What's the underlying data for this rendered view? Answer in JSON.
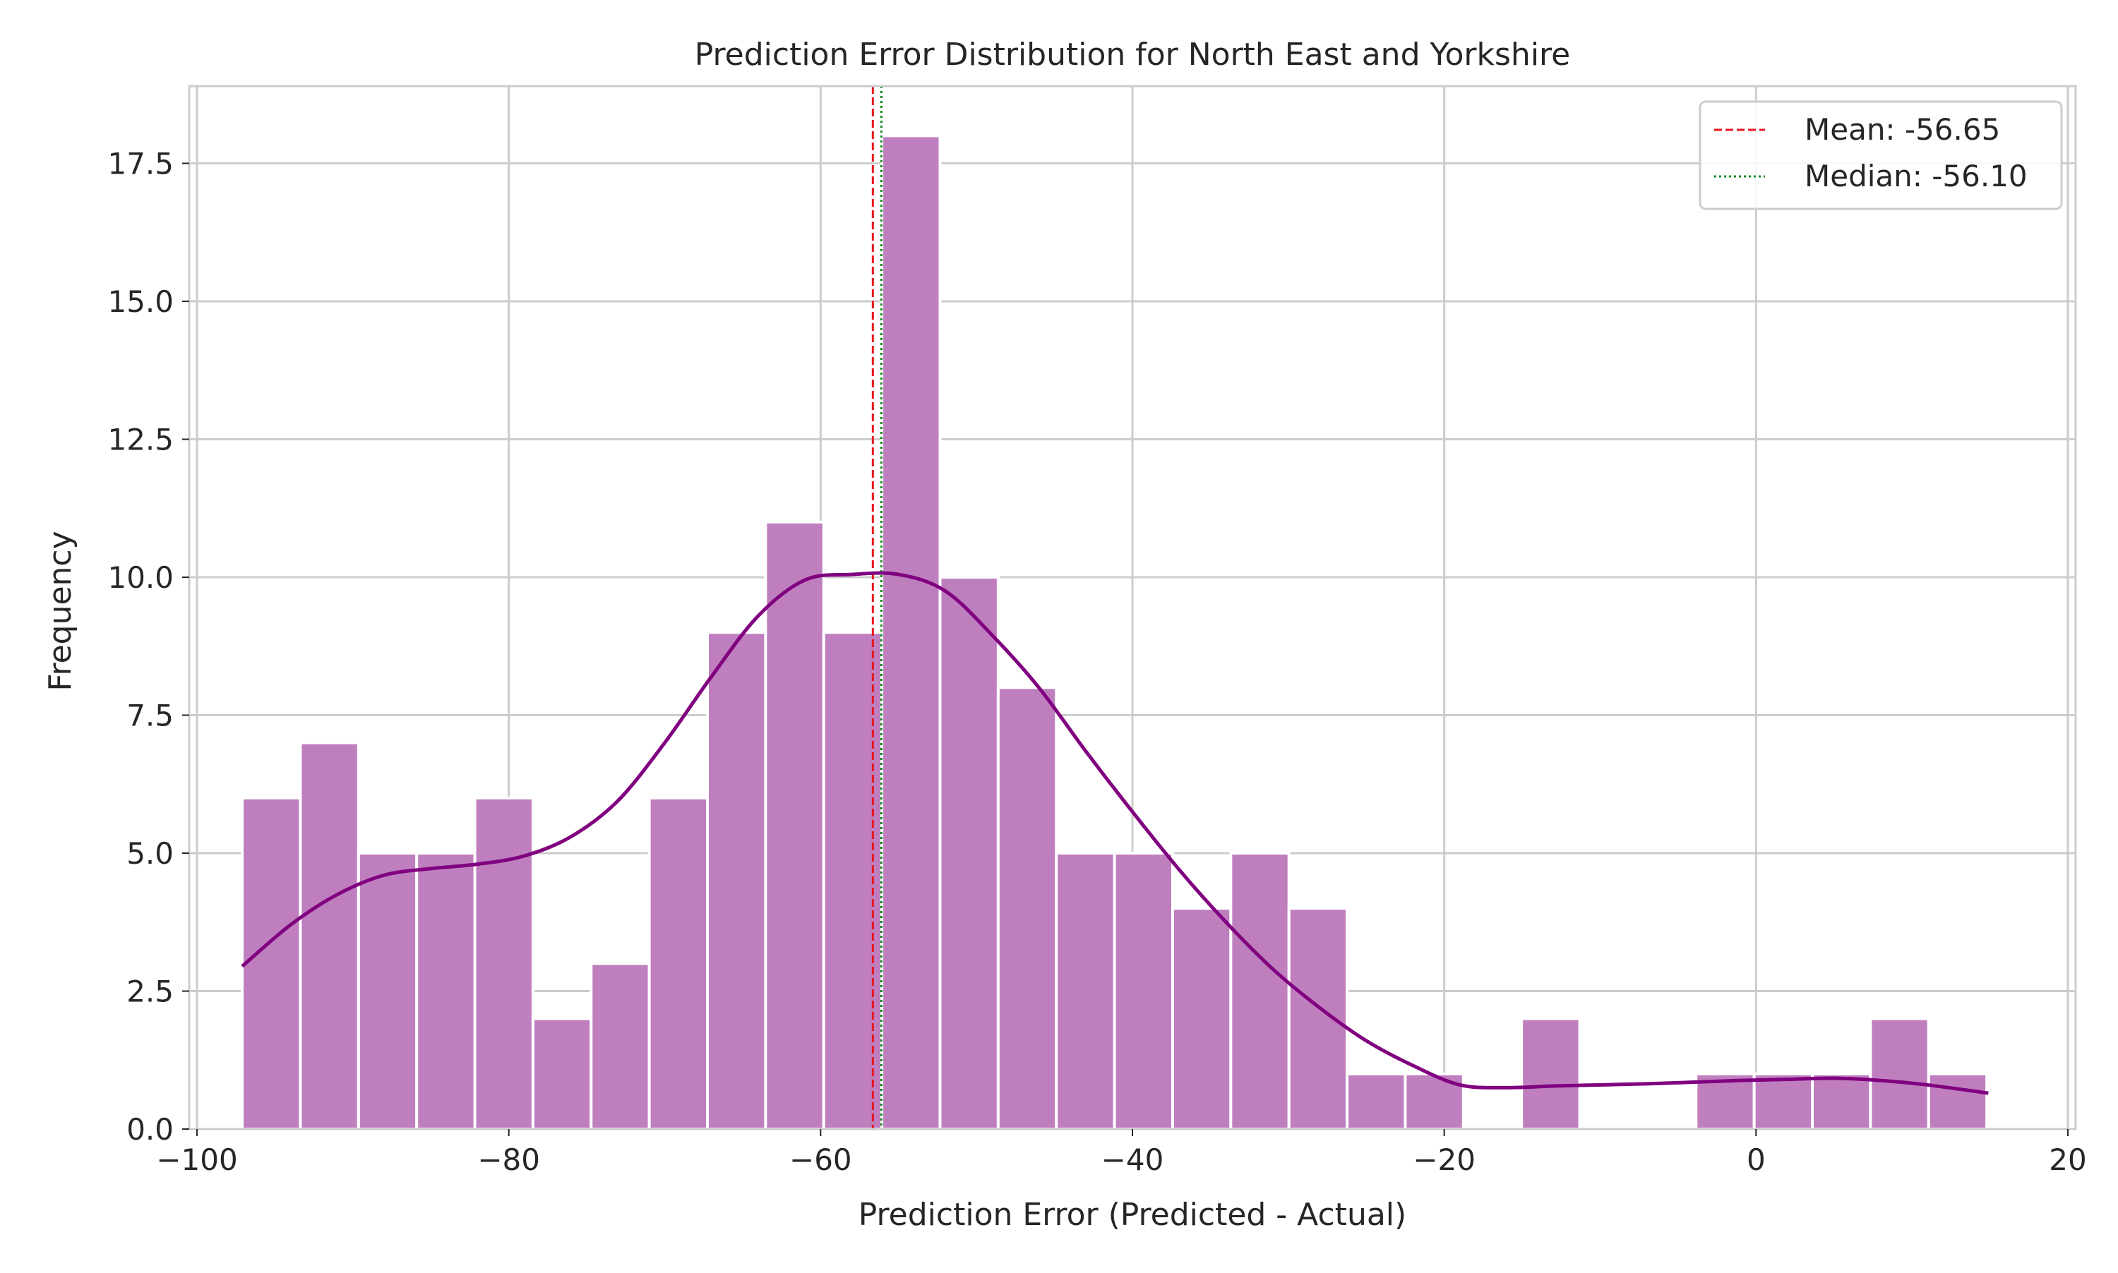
{
  "chart_data": {
    "type": "bar",
    "title": "Prediction Error Distribution for North East and Yorkshire",
    "xlabel": "Prediction Error (Predicted - Actual)",
    "ylabel": "Frequency",
    "xlim": [
      -100.5,
      20.5
    ],
    "ylim": [
      0,
      18.9
    ],
    "xticks": [
      -100,
      -80,
      -60,
      -40,
      -20,
      0,
      20
    ],
    "xtick_labels": [
      "−100",
      "−80",
      "−60",
      "−40",
      "−20",
      "0",
      "20"
    ],
    "yticks": [
      0,
      2.5,
      5,
      7.5,
      10,
      12.5,
      15,
      17.5
    ],
    "ytick_labels": [
      "0.0",
      "2.5",
      "5.0",
      "7.5",
      "10.0",
      "12.5",
      "15.0",
      "17.5"
    ],
    "grid": true,
    "legend_position": "top-right",
    "bin_start": -97.1,
    "bin_width": 3.73,
    "counts": [
      6,
      7,
      5,
      5,
      6,
      2,
      3,
      6,
      9,
      11,
      9,
      18,
      10,
      8,
      5,
      5,
      4,
      5,
      4,
      1,
      1,
      0,
      2,
      0,
      0,
      1,
      1,
      1,
      2,
      1
    ],
    "bar_color": "#bf7fbf",
    "kde": {
      "color": "#800080",
      "x": [
        -97.1,
        -94,
        -91,
        -88,
        -85,
        -82,
        -79,
        -76,
        -73,
        -70,
        -67,
        -64,
        -61,
        -58,
        -55,
        -52,
        -49,
        -46,
        -43,
        -40,
        -37,
        -34,
        -31,
        -28,
        -25,
        -22,
        -19,
        -16,
        -13,
        -10,
        -7,
        -4,
        -1,
        2,
        5,
        8,
        11,
        14.9
      ],
      "y": [
        2.95,
        3.7,
        4.25,
        4.6,
        4.72,
        4.8,
        4.95,
        5.3,
        5.95,
        7.0,
        8.2,
        9.3,
        9.95,
        10.05,
        10.05,
        9.75,
        8.95,
        8.0,
        6.85,
        5.75,
        4.7,
        3.75,
        2.9,
        2.2,
        1.6,
        1.15,
        0.8,
        0.75,
        0.78,
        0.8,
        0.82,
        0.85,
        0.88,
        0.9,
        0.92,
        0.88,
        0.8,
        0.65
      ]
    },
    "reference_lines": [
      {
        "name": "Mean: -56.65",
        "x": -56.65,
        "color": "#e8151b",
        "style": "dashed"
      },
      {
        "name": "Median: -56.10",
        "x": -56.1,
        "color": "#138a1e",
        "style": "dotted"
      }
    ]
  }
}
